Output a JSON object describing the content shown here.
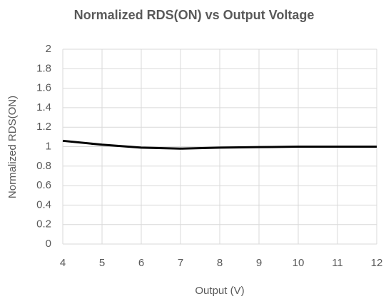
{
  "chart_data": {
    "type": "line",
    "title": "Normalized RDS(ON) vs Output Voltage",
    "x_label": "Output (V)",
    "y_label": "Normalized RDS(ON)",
    "x": [
      4,
      5,
      6,
      7,
      8,
      9,
      10,
      11,
      12
    ],
    "values": [
      1.06,
      1.02,
      0.99,
      0.98,
      0.99,
      0.995,
      1.0,
      1.0,
      1.0
    ],
    "color": "#000000",
    "xlim": [
      4,
      12
    ],
    "xticks": [
      4,
      5,
      6,
      7,
      8,
      9,
      10,
      11,
      12
    ],
    "ylim": [
      0,
      2
    ],
    "yticks": [
      0,
      0.2,
      0.4,
      0.6,
      0.8,
      1,
      1.2,
      1.4,
      1.6,
      1.8,
      2
    ],
    "grid": true
  }
}
